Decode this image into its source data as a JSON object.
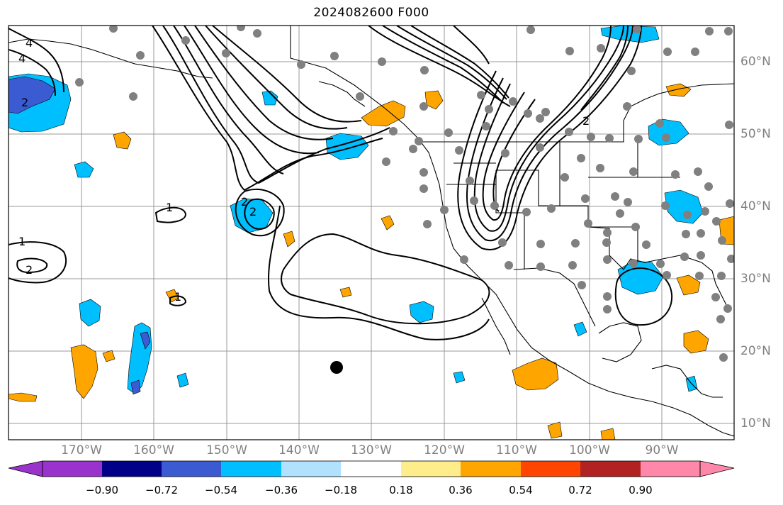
{
  "title": "2024082600 F000",
  "map": {
    "lon_labels": [
      "170°W",
      "160°W",
      "150°W",
      "140°W",
      "130°W",
      "120°W",
      "110°W",
      "100°W",
      "90°W"
    ],
    "lat_labels": [
      "60°N",
      "50°N",
      "40°N",
      "30°N",
      "20°N",
      "10°N"
    ],
    "contour_labels": [
      "4",
      "4",
      "1",
      "2",
      "1",
      "2",
      "1",
      "2",
      "2",
      "2"
    ],
    "colors": {
      "ocean": "#ffffff",
      "gridline": "#999999",
      "coast": "#000000",
      "station_dot": "#808080",
      "marker": "#000000"
    }
  },
  "colorbar": {
    "tick_labels": [
      "−0.90",
      "−0.72",
      "−0.54",
      "−0.36",
      "−0.18",
      "0.18",
      "0.36",
      "0.54",
      "0.72",
      "0.90"
    ],
    "bins": [
      {
        "color": "#9933cc"
      },
      {
        "color": "#000088"
      },
      {
        "color": "#3a5bd1"
      },
      {
        "color": "#00bfff"
      },
      {
        "color": "#b0e2ff"
      },
      {
        "color": "#ffffff"
      },
      {
        "color": "#ffec8b"
      },
      {
        "color": "#ffa500"
      },
      {
        "color": "#ff4500"
      },
      {
        "color": "#b22222"
      },
      {
        "color": "#ff88aa"
      }
    ]
  }
}
